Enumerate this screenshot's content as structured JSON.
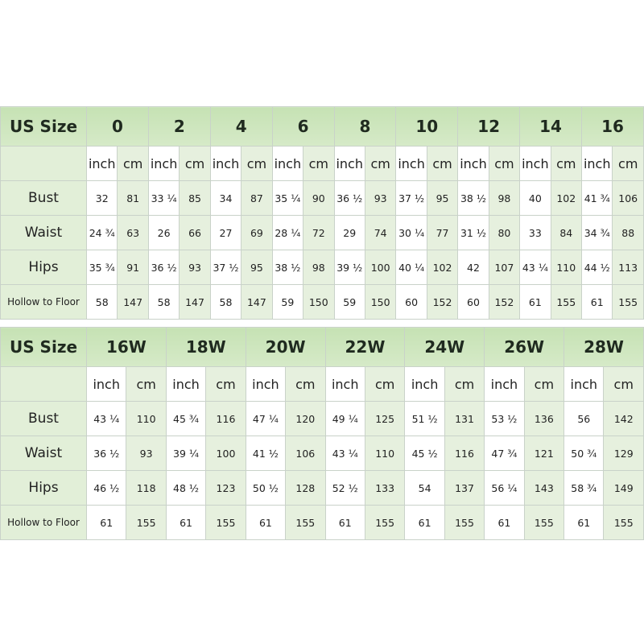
{
  "header_label": "US Size",
  "units": {
    "inch": "inch",
    "cm": "cm"
  },
  "row_labels": [
    "Bust",
    "Waist",
    "Hips",
    "Hollow to Floor"
  ],
  "colors": {
    "header_green": "#c6e2b4",
    "label_green": "#e2efd8",
    "cm_column": "#e6f0de"
  },
  "tables": [
    {
      "sizes": [
        {
          "size": "0",
          "bust": [
            "32",
            "81"
          ],
          "waist": [
            "24 ¾",
            "63"
          ],
          "hips": [
            "35 ¾",
            "91"
          ],
          "hollow": [
            "58",
            "147"
          ]
        },
        {
          "size": "2",
          "bust": [
            "33 ¼",
            "85"
          ],
          "waist": [
            "26",
            "66"
          ],
          "hips": [
            "36 ½",
            "93"
          ],
          "hollow": [
            "58",
            "147"
          ]
        },
        {
          "size": "4",
          "bust": [
            "34",
            "87"
          ],
          "waist": [
            "27",
            "69"
          ],
          "hips": [
            "37 ½",
            "95"
          ],
          "hollow": [
            "58",
            "147"
          ]
        },
        {
          "size": "6",
          "bust": [
            "35 ¼",
            "90"
          ],
          "waist": [
            "28 ¼",
            "72"
          ],
          "hips": [
            "38 ½",
            "98"
          ],
          "hollow": [
            "59",
            "150"
          ]
        },
        {
          "size": "8",
          "bust": [
            "36 ½",
            "93"
          ],
          "waist": [
            "29",
            "74"
          ],
          "hips": [
            "39 ½",
            "100"
          ],
          "hollow": [
            "59",
            "150"
          ]
        },
        {
          "size": "10",
          "bust": [
            "37 ½",
            "95"
          ],
          "waist": [
            "30 ¼",
            "77"
          ],
          "hips": [
            "40 ¼",
            "102"
          ],
          "hollow": [
            "60",
            "152"
          ]
        },
        {
          "size": "12",
          "bust": [
            "38 ½",
            "98"
          ],
          "waist": [
            "31 ½",
            "80"
          ],
          "hips": [
            "42",
            "107"
          ],
          "hollow": [
            "60",
            "152"
          ]
        },
        {
          "size": "14",
          "bust": [
            "40",
            "102"
          ],
          "waist": [
            "33",
            "84"
          ],
          "hips": [
            "43 ¼",
            "110"
          ],
          "hollow": [
            "61",
            "155"
          ]
        },
        {
          "size": "16",
          "bust": [
            "41 ¾",
            "106"
          ],
          "waist": [
            "34 ¾",
            "88"
          ],
          "hips": [
            "44 ½",
            "113"
          ],
          "hollow": [
            "61",
            "155"
          ]
        }
      ]
    },
    {
      "sizes": [
        {
          "size": "16W",
          "bust": [
            "43 ¼",
            "110"
          ],
          "waist": [
            "36 ½",
            "93"
          ],
          "hips": [
            "46 ½",
            "118"
          ],
          "hollow": [
            "61",
            "155"
          ]
        },
        {
          "size": "18W",
          "bust": [
            "45 ¾",
            "116"
          ],
          "waist": [
            "39 ¼",
            "100"
          ],
          "hips": [
            "48 ½",
            "123"
          ],
          "hollow": [
            "61",
            "155"
          ]
        },
        {
          "size": "20W",
          "bust": [
            "47 ¼",
            "120"
          ],
          "waist": [
            "41 ½",
            "106"
          ],
          "hips": [
            "50 ½",
            "128"
          ],
          "hollow": [
            "61",
            "155"
          ]
        },
        {
          "size": "22W",
          "bust": [
            "49 ¼",
            "125"
          ],
          "waist": [
            "43 ¼",
            "110"
          ],
          "hips": [
            "52 ½",
            "133"
          ],
          "hollow": [
            "61",
            "155"
          ]
        },
        {
          "size": "24W",
          "bust": [
            "51 ½",
            "131"
          ],
          "waist": [
            "45 ½",
            "116"
          ],
          "hips": [
            "54",
            "137"
          ],
          "hollow": [
            "61",
            "155"
          ]
        },
        {
          "size": "26W",
          "bust": [
            "53 ½",
            "136"
          ],
          "waist": [
            "47 ¾",
            "121"
          ],
          "hips": [
            "56 ¼",
            "143"
          ],
          "hollow": [
            "61",
            "155"
          ]
        },
        {
          "size": "28W",
          "bust": [
            "56",
            "142"
          ],
          "waist": [
            "50 ¾",
            "129"
          ],
          "hips": [
            "58 ¾",
            "149"
          ],
          "hollow": [
            "61",
            "155"
          ]
        }
      ]
    }
  ]
}
